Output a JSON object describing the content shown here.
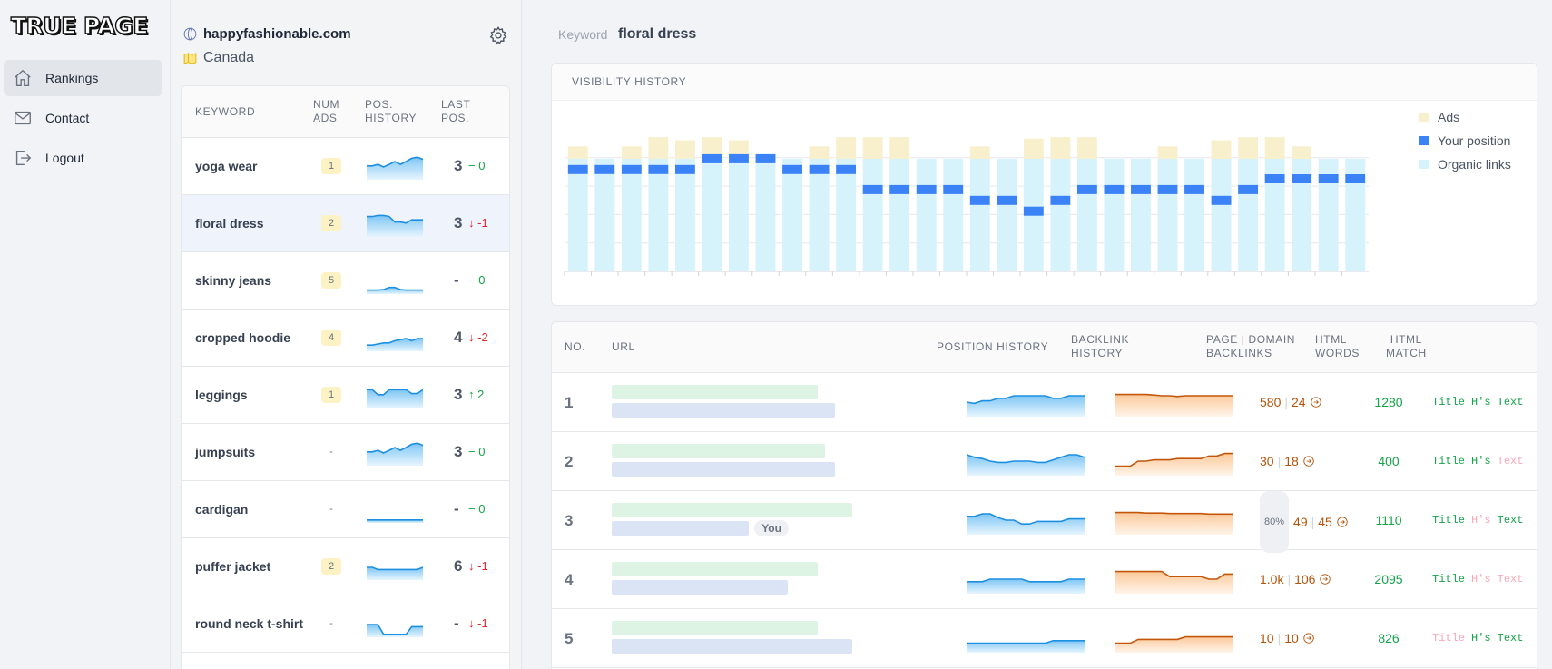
{
  "app": {
    "logo": "TRUE PAGE"
  },
  "nav": [
    {
      "label": "Rankings",
      "icon": "home-icon",
      "active": true
    },
    {
      "label": "Contact",
      "icon": "mail-icon",
      "active": false
    },
    {
      "label": "Logout",
      "icon": "logout-icon",
      "active": false
    }
  ],
  "site": {
    "domain": "happyfashionable.com",
    "country": "Canada"
  },
  "kw_table": {
    "headers": {
      "keyword": "KEYWORD",
      "num_ads": [
        "NUM",
        "ADS"
      ],
      "pos_history": [
        "POS.",
        "HISTORY"
      ],
      "last_pos": [
        "LAST",
        "POS."
      ]
    },
    "rows": [
      {
        "keyword": "yoga wear",
        "ads": "1",
        "pos": "3",
        "delta": "0",
        "dir": "zero",
        "spark": [
          0.55,
          0.55,
          0.62,
          0.5,
          0.62,
          0.75,
          0.62,
          0.75,
          0.9,
          0.95,
          0.85
        ]
      },
      {
        "keyword": "floral dress",
        "ads": "2",
        "pos": "3",
        "delta": "-1",
        "dir": "down",
        "spark": [
          0.85,
          0.85,
          0.9,
          0.9,
          0.85,
          0.6,
          0.6,
          0.55,
          0.7,
          0.7,
          0.7
        ]
      },
      {
        "keyword": "skinny jeans",
        "ads": "5",
        "pos": "-",
        "delta": "0",
        "dir": "zero",
        "spark": [
          0.1,
          0.1,
          0.1,
          0.12,
          0.22,
          0.22,
          0.12,
          0.1,
          0.1,
          0.1,
          0.1
        ]
      },
      {
        "keyword": "cropped hoodie",
        "ads": "4",
        "pos": "4",
        "delta": "-2",
        "dir": "down",
        "spark": [
          0.2,
          0.2,
          0.25,
          0.3,
          0.3,
          0.4,
          0.45,
          0.5,
          0.4,
          0.5,
          0.5
        ]
      },
      {
        "keyword": "leggings",
        "ads": "1",
        "pos": "3",
        "delta": "2",
        "dir": "up",
        "spark": [
          0.78,
          0.78,
          0.55,
          0.55,
          0.78,
          0.78,
          0.78,
          0.78,
          0.6,
          0.6,
          0.78
        ]
      },
      {
        "keyword": "jumpsuits",
        "ads": "-",
        "pos": "3",
        "delta": "0",
        "dir": "zero",
        "spark": [
          0.55,
          0.55,
          0.62,
          0.5,
          0.62,
          0.75,
          0.62,
          0.75,
          0.9,
          0.95,
          0.85
        ]
      },
      {
        "keyword": "cardigan",
        "ads": "-",
        "pos": "-",
        "delta": "0",
        "dir": "zero",
        "spark": [
          0.05,
          0.05,
          0.05,
          0.05,
          0.05,
          0.05,
          0.05,
          0.05,
          0.05,
          0.05,
          0.05
        ]
      },
      {
        "keyword": "puffer jacket",
        "ads": "2",
        "pos": "6",
        "delta": "-1",
        "dir": "down",
        "spark": [
          0.5,
          0.5,
          0.4,
          0.4,
          0.4,
          0.4,
          0.4,
          0.4,
          0.4,
          0.4,
          0.5
        ]
      },
      {
        "keyword": "round neck t-shirt",
        "ads": "-",
        "pos": "-",
        "delta": "-1",
        "dir": "down",
        "spark": [
          0.5,
          0.5,
          0.5,
          0.05,
          0.05,
          0.05,
          0.05,
          0.05,
          0.4,
          0.4,
          0.4
        ]
      }
    ]
  },
  "main": {
    "keyword_label": "Keyword",
    "keyword_value": "floral dress"
  },
  "chart_data": {
    "type": "bar",
    "title": "VISIBILITY HISTORY",
    "legend": [
      "Ads",
      "Your position",
      "Organic links"
    ],
    "legend_position": "right",
    "colors": {
      "ads": "#f8efcc",
      "position": "#3b82f6",
      "organic": "#d6f2fb"
    },
    "ylim": [
      0,
      10
    ],
    "series": [
      {
        "name": "Organic links",
        "values": [
          7.3,
          7.3,
          7.3,
          7.3,
          7.3,
          7.3,
          7.3,
          7.3,
          7.3,
          7.3,
          7.3,
          7.3,
          7.3,
          7.3,
          7.3,
          7.3,
          7.3,
          7.3,
          7.3,
          7.3,
          7.3,
          7.3,
          7.3,
          7.3,
          7.3,
          7.3,
          7.3,
          7.3,
          7.3,
          7.3
        ]
      },
      {
        "name": "Ads",
        "values": [
          0.8,
          0,
          0.8,
          1.4,
          1.2,
          1.4,
          1.2,
          0,
          0,
          0.8,
          1.4,
          1.4,
          1.4,
          0,
          0,
          0.8,
          0,
          1.3,
          1.4,
          1.4,
          0,
          0,
          0.8,
          0,
          1.2,
          1.4,
          1.4,
          0.8,
          0,
          0
        ]
      },
      {
        "name": "Your position",
        "values": [
          6.6,
          6.6,
          6.6,
          6.6,
          6.6,
          7.3,
          7.3,
          7.3,
          6.6,
          6.6,
          6.6,
          5.3,
          5.3,
          5.3,
          5.3,
          4.6,
          4.6,
          3.9,
          4.6,
          5.3,
          5.3,
          5.3,
          5.3,
          5.3,
          4.6,
          5.3,
          6,
          6,
          6,
          6
        ]
      }
    ]
  },
  "url_table": {
    "headers": {
      "no": "NO.",
      "url": "URL",
      "pos_history": "POSITION HISTORY",
      "backlink_history": [
        "BACKLINK",
        "HISTORY"
      ],
      "backlinks": [
        "PAGE | DOMAIN",
        "BACKLINKS"
      ],
      "words": [
        "HTML",
        "WORDS"
      ],
      "match": [
        "HTML",
        "MATCH"
      ]
    },
    "match_labels": [
      "Title",
      "H's",
      "Text"
    ],
    "rows": [
      {
        "no": "1",
        "bar1": 0.84,
        "bar2": 0.91,
        "you": false,
        "pct": "",
        "page_bl": "580",
        "domain_bl": "24",
        "words": "1280",
        "match": [
          true,
          true,
          true
        ],
        "pos": [
          0.5,
          0.45,
          0.55,
          0.55,
          0.65,
          0.65,
          0.75,
          0.75,
          0.75,
          0.75,
          0.75,
          0.65,
          0.65,
          0.75,
          0.75,
          0.75
        ],
        "bl": [
          0.8,
          0.8,
          0.8,
          0.8,
          0.8,
          0.78,
          0.75,
          0.75,
          0.72,
          0.75,
          0.75,
          0.75,
          0.75,
          0.75,
          0.75,
          0.75
        ]
      },
      {
        "no": "2",
        "bar1": 0.87,
        "bar2": 0.91,
        "you": false,
        "pct": "",
        "page_bl": "30",
        "domain_bl": "18",
        "words": "400",
        "match": [
          true,
          true,
          false
        ],
        "pos": [
          0.75,
          0.65,
          0.6,
          0.5,
          0.45,
          0.45,
          0.5,
          0.5,
          0.5,
          0.45,
          0.45,
          0.55,
          0.65,
          0.75,
          0.75,
          0.65
        ],
        "bl": [
          0.3,
          0.3,
          0.3,
          0.5,
          0.5,
          0.55,
          0.55,
          0.55,
          0.6,
          0.6,
          0.6,
          0.6,
          0.7,
          0.7,
          0.8,
          0.8
        ]
      },
      {
        "no": "3",
        "bar1": 0.98,
        "bar2": 0.56,
        "you": true,
        "you_label": "You",
        "pct": "80%",
        "page_bl": "49",
        "domain_bl": "45",
        "words": "1110",
        "match": [
          true,
          false,
          true
        ],
        "pos": [
          0.65,
          0.65,
          0.75,
          0.75,
          0.6,
          0.5,
          0.5,
          0.35,
          0.35,
          0.45,
          0.45,
          0.45,
          0.45,
          0.55,
          0.55,
          0.55
        ],
        "bl": [
          0.8,
          0.8,
          0.8,
          0.8,
          0.78,
          0.78,
          0.78,
          0.76,
          0.76,
          0.76,
          0.76,
          0.76,
          0.74,
          0.74,
          0.74,
          0.74
        ]
      },
      {
        "no": "4",
        "bar1": 0.84,
        "bar2": 0.72,
        "you": false,
        "pct": "",
        "page_bl": "1.0k",
        "domain_bl": "106",
        "words": "2095",
        "match": [
          true,
          false,
          false
        ],
        "pos": [
          0.4,
          0.4,
          0.4,
          0.5,
          0.5,
          0.5,
          0.5,
          0.5,
          0.4,
          0.4,
          0.4,
          0.4,
          0.4,
          0.5,
          0.5,
          0.5
        ],
        "bl": [
          0.8,
          0.8,
          0.8,
          0.8,
          0.8,
          0.8,
          0.8,
          0.6,
          0.6,
          0.6,
          0.6,
          0.6,
          0.5,
          0.5,
          0.7,
          0.7
        ]
      },
      {
        "no": "5",
        "bar1": 0.84,
        "bar2": 0.98,
        "you": false,
        "pct": "",
        "page_bl": "10",
        "domain_bl": "10",
        "words": "826",
        "match": [
          false,
          true,
          true
        ],
        "pos": [
          0.3,
          0.3,
          0.3,
          0.3,
          0.3,
          0.3,
          0.3,
          0.3,
          0.3,
          0.3,
          0.3,
          0.4,
          0.4,
          0.4,
          0.4,
          0.4
        ],
        "bl": [
          0.3,
          0.3,
          0.3,
          0.45,
          0.45,
          0.45,
          0.45,
          0.45,
          0.45,
          0.55,
          0.55,
          0.55,
          0.55,
          0.55,
          0.55,
          0.55
        ]
      }
    ]
  }
}
